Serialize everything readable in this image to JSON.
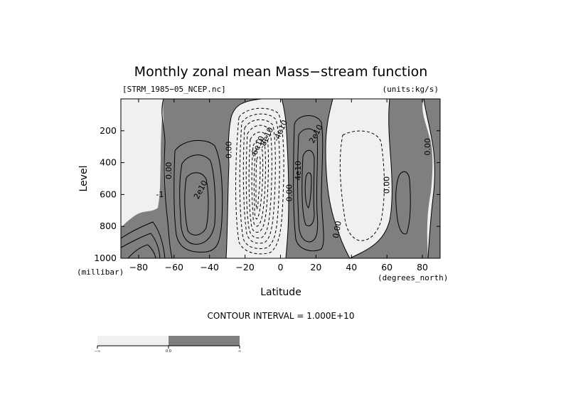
{
  "chart_data": {
    "type": "contour",
    "title": "Monthly zonal mean Mass−stream function",
    "file_label": "[STRM_1985−05_NCEP.nc]",
    "units_label": "(units:kg/s)",
    "xlabel": "Latitude",
    "x_unit_label": "(degrees_north)",
    "ylabel": "Level",
    "y_unit_label": "(millibar)",
    "xlim": [
      -90,
      90
    ],
    "ylim": [
      1000,
      0
    ],
    "x_ticks": [
      -80,
      -60,
      -40,
      -20,
      0,
      20,
      40,
      60,
      80
    ],
    "y_ticks": [
      200,
      400,
      600,
      800,
      1000
    ],
    "contour_interval_text": "CONTOUR INTERVAL = 1.000E+10",
    "shading": {
      "negative": "#f0f0f0",
      "positive": "#7f7f7f",
      "threshold": 0.0
    },
    "colorbar": {
      "ticks": [
        "−∞",
        "0.0",
        "∞"
      ],
      "colors": [
        "#f0f0f0",
        "#7f7f7f"
      ]
    },
    "contour_labels": [
      {
        "text": "0.00",
        "lat": -63,
        "level": 450,
        "rot": -90
      },
      {
        "text": "2e10",
        "lat": -45,
        "level": 570,
        "rot": -62
      },
      {
        "text": "-1",
        "lat": -68,
        "level": 600,
        "rot": 0
      },
      {
        "text": "0.00",
        "lat": -29,
        "level": 320,
        "rot": -90
      },
      {
        "text": "-6e10",
        "lat": -13,
        "level": 300,
        "rot": -65
      },
      {
        "text": "-8e10",
        "lat": -8,
        "level": 245,
        "rot": -65
      },
      {
        "text": "-4e10",
        "lat": 0,
        "level": 200,
        "rot": -65
      },
      {
        "text": "0.00",
        "lat": 5,
        "level": 590,
        "rot": -90
      },
      {
        "text": "4e10",
        "lat": 10,
        "level": 450,
        "rot": -90
      },
      {
        "text": "2e10",
        "lat": 20,
        "level": 220,
        "rot": -62
      },
      {
        "text": "0.00",
        "lat": 32,
        "level": 820,
        "rot": -80
      },
      {
        "text": "0.00",
        "lat": 60,
        "level": 540,
        "rot": -90
      },
      {
        "text": "0.00",
        "lat": 83,
        "level": 300,
        "rot": -90
      }
    ],
    "features": [
      {
        "name": "sh-ferrel-cell",
        "sign": "positive",
        "lat_range": [
          -65,
          -40
        ],
        "level_range": [
          200,
          1000
        ],
        "peak": 30000000000.0
      },
      {
        "name": "hadley-cell",
        "sign": "negative",
        "lat_range": [
          -30,
          6
        ],
        "level_range": [
          100,
          1000
        ],
        "peak": -90000000000.0
      },
      {
        "name": "nh-hadley-cell",
        "sign": "positive",
        "lat_range": [
          6,
          28
        ],
        "level_range": [
          100,
          1000
        ],
        "peak": 40000000000.0
      },
      {
        "name": "nh-ferrel-cell",
        "sign": "negative",
        "lat_range": [
          28,
          62
        ],
        "level_range": [
          150,
          900
        ],
        "peak": -10000000000.0
      },
      {
        "name": "nh-polar-cell",
        "sign": "positive",
        "lat_range": [
          62,
          90
        ],
        "level_range": [
          0,
          1000
        ],
        "peak": 10000000000.0
      }
    ]
  }
}
